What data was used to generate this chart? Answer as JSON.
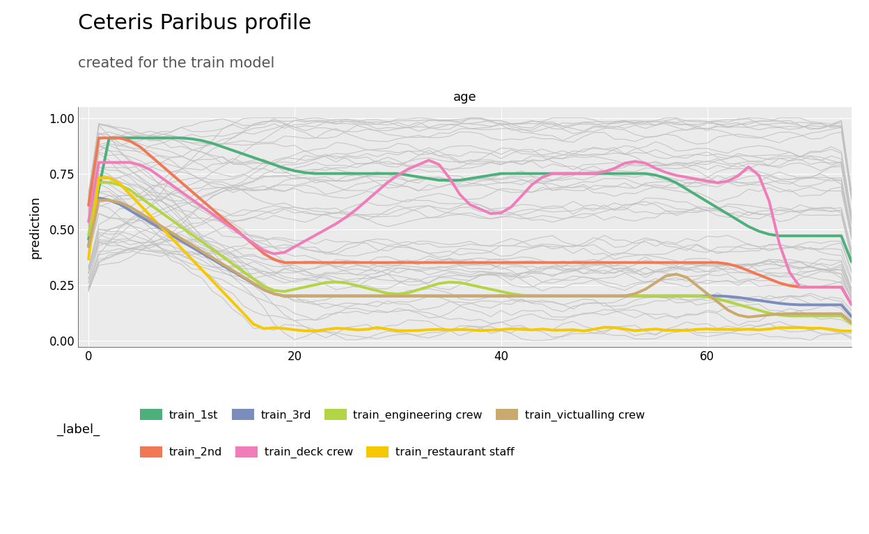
{
  "title": "Ceteris Paribus profile",
  "subtitle": "created for the train model",
  "xlabel": "age",
  "ylabel": "prediction",
  "xlim": [
    -1,
    74
  ],
  "ylim": [
    -0.03,
    1.05
  ],
  "xticks": [
    0,
    20,
    40,
    60
  ],
  "yticks": [
    0.0,
    0.25,
    0.5,
    0.75,
    1.0
  ],
  "background_color": "#ffffff",
  "panel_bg": "#ebebeb",
  "grid_color": "#ffffff",
  "legend_title": "_label_",
  "classes": {
    "train_1st": {
      "color": "#4daf7c",
      "lw": 2.8
    },
    "train_2nd": {
      "color": "#f07855",
      "lw": 2.8
    },
    "train_3rd": {
      "color": "#7b8dbd",
      "lw": 2.8
    },
    "train_deck crew": {
      "color": "#f07cba",
      "lw": 2.8
    },
    "train_engineering crew": {
      "color": "#b3d444",
      "lw": 2.8
    },
    "train_restaurant staff": {
      "color": "#f5c800",
      "lw": 2.8
    },
    "train_victualling crew": {
      "color": "#c9a96e",
      "lw": 2.8
    }
  },
  "gray_color": "#c0c0c0",
  "gray_lw": 0.8,
  "n_gray_lines": 50,
  "random_seed": 42
}
